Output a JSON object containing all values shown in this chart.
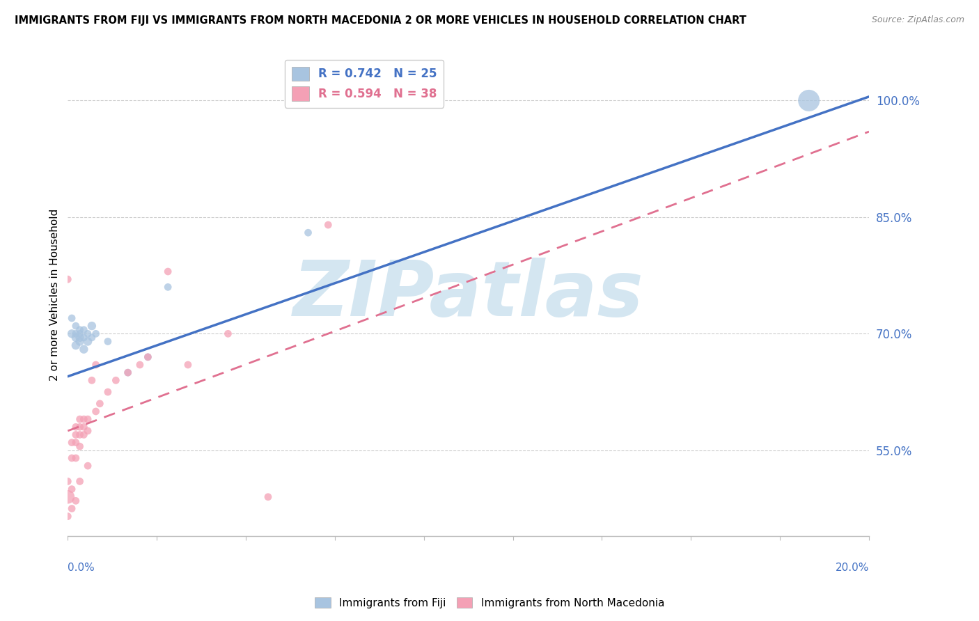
{
  "title": "IMMIGRANTS FROM FIJI VS IMMIGRANTS FROM NORTH MACEDONIA 2 OR MORE VEHICLES IN HOUSEHOLD CORRELATION CHART",
  "source": "Source: ZipAtlas.com",
  "ylabel": "2 or more Vehicles in Household",
  "ylabel_ticks": [
    "55.0%",
    "70.0%",
    "85.0%",
    "100.0%"
  ],
  "ylabel_tick_vals": [
    0.55,
    0.7,
    0.85,
    1.0
  ],
  "xlim": [
    0.0,
    0.2
  ],
  "ylim": [
    0.44,
    1.06
  ],
  "fiji_color": "#a8c4e0",
  "fiji_line_color": "#4472c4",
  "macedonia_color": "#f4a0b5",
  "macedonia_line_color": "#e07090",
  "watermark_text": "ZIPatlas",
  "watermark_color": "#d0e4f0",
  "fiji_line": [
    0.0,
    0.645,
    0.2,
    1.005
  ],
  "macedonia_line": [
    0.0,
    0.575,
    0.2,
    0.96
  ],
  "fiji_points": [
    [
      0.001,
      0.7
    ],
    [
      0.001,
      0.72
    ],
    [
      0.002,
      0.685
    ],
    [
      0.002,
      0.7
    ],
    [
      0.002,
      0.695
    ],
    [
      0.002,
      0.71
    ],
    [
      0.003,
      0.69
    ],
    [
      0.003,
      0.7
    ],
    [
      0.003,
      0.695
    ],
    [
      0.003,
      0.705
    ],
    [
      0.004,
      0.695
    ],
    [
      0.004,
      0.68
    ],
    [
      0.004,
      0.705
    ],
    [
      0.005,
      0.7
    ],
    [
      0.005,
      0.69
    ],
    [
      0.006,
      0.695
    ],
    [
      0.006,
      0.71
    ],
    [
      0.007,
      0.7
    ],
    [
      0.01,
      0.69
    ],
    [
      0.015,
      0.65
    ],
    [
      0.02,
      0.67
    ],
    [
      0.025,
      0.76
    ],
    [
      0.06,
      0.83
    ],
    [
      0.185,
      1.0
    ]
  ],
  "fiji_sizes": [
    80,
    60,
    80,
    60,
    80,
    60,
    80,
    60,
    80,
    60,
    60,
    80,
    60,
    60,
    80,
    60,
    80,
    60,
    60,
    60,
    60,
    60,
    60,
    500
  ],
  "macedonia_points": [
    [
      0.0,
      0.49
    ],
    [
      0.0,
      0.51
    ],
    [
      0.0,
      0.77
    ],
    [
      0.001,
      0.5
    ],
    [
      0.001,
      0.54
    ],
    [
      0.001,
      0.56
    ],
    [
      0.002,
      0.54
    ],
    [
      0.002,
      0.56
    ],
    [
      0.002,
      0.57
    ],
    [
      0.002,
      0.58
    ],
    [
      0.003,
      0.555
    ],
    [
      0.003,
      0.57
    ],
    [
      0.003,
      0.58
    ],
    [
      0.003,
      0.59
    ],
    [
      0.004,
      0.57
    ],
    [
      0.004,
      0.58
    ],
    [
      0.004,
      0.59
    ],
    [
      0.005,
      0.575
    ],
    [
      0.005,
      0.59
    ],
    [
      0.006,
      0.64
    ],
    [
      0.007,
      0.6
    ],
    [
      0.007,
      0.66
    ],
    [
      0.008,
      0.61
    ],
    [
      0.01,
      0.625
    ],
    [
      0.012,
      0.64
    ],
    [
      0.015,
      0.65
    ],
    [
      0.018,
      0.66
    ],
    [
      0.02,
      0.67
    ],
    [
      0.025,
      0.78
    ],
    [
      0.03,
      0.66
    ],
    [
      0.04,
      0.7
    ],
    [
      0.05,
      0.49
    ],
    [
      0.065,
      0.84
    ],
    [
      0.0,
      0.465
    ],
    [
      0.001,
      0.475
    ],
    [
      0.002,
      0.485
    ],
    [
      0.003,
      0.51
    ],
    [
      0.005,
      0.53
    ]
  ],
  "macedonia_sizes": [
    200,
    60,
    60,
    60,
    60,
    60,
    60,
    60,
    60,
    60,
    60,
    60,
    60,
    60,
    60,
    60,
    60,
    60,
    60,
    60,
    60,
    60,
    60,
    60,
    60,
    60,
    60,
    60,
    60,
    60,
    60,
    60,
    60,
    60,
    60,
    60,
    60,
    60
  ]
}
